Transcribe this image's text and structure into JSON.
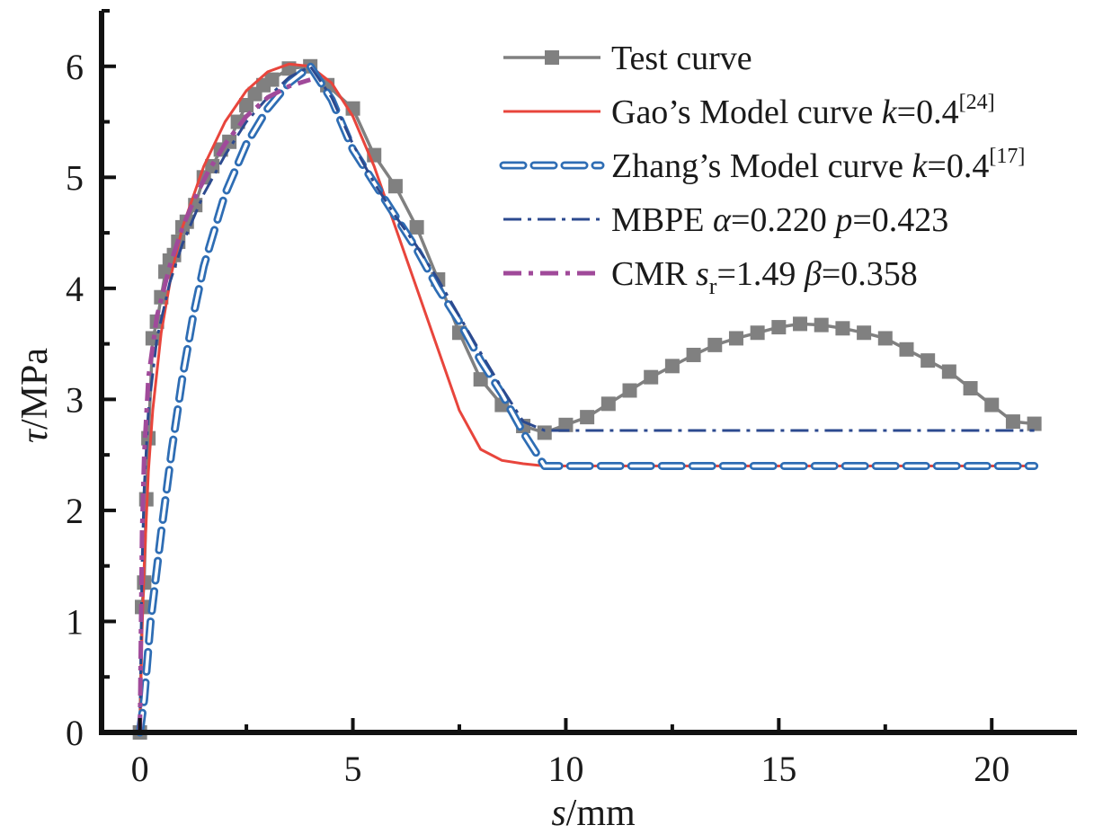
{
  "chart_data": {
    "type": "line",
    "xlabel": {
      "var": "s",
      "unit": "/mm"
    },
    "ylabel": {
      "var": "τ",
      "unit": "/MPa"
    },
    "xlim": [
      -0.9,
      22.0
    ],
    "ylim": [
      0,
      6.5
    ],
    "x_ticks": [
      0,
      5,
      10,
      15,
      20
    ],
    "y_ticks": [
      0,
      1,
      2,
      3,
      4,
      5,
      6
    ],
    "grid": false,
    "legend_position": "top-right",
    "colors": {
      "test": "#808080",
      "gao": "#e8453c",
      "zhang": "#2e6db4",
      "mbpe": "#2c4a8f",
      "cmr": "#a04a9a"
    },
    "series": [
      {
        "name": "Test curve",
        "style": "line-square-markers",
        "color": "#808080",
        "legend": {
          "base": "Test curve"
        },
        "x": [
          0,
          0.05,
          0.1,
          0.15,
          0.2,
          0.3,
          0.4,
          0.5,
          0.6,
          0.7,
          0.8,
          0.9,
          1.0,
          1.1,
          1.3,
          1.5,
          1.7,
          1.9,
          2.1,
          2.3,
          2.5,
          2.7,
          2.9,
          3.1,
          3.5,
          4.0,
          4.4,
          5.0,
          5.5,
          6.0,
          6.5,
          7.0,
          7.5,
          8.0,
          8.5,
          9.0,
          9.5,
          10.0,
          10.5,
          11.0,
          11.5,
          12.0,
          12.5,
          13.0,
          13.5,
          14.0,
          14.5,
          15.0,
          15.5,
          16.0,
          16.5,
          17.0,
          17.5,
          18.0,
          18.5,
          19.0,
          19.5,
          20.0,
          20.5,
          21.0
        ],
        "y": [
          0,
          1.13,
          1.35,
          2.1,
          2.65,
          3.55,
          3.7,
          3.92,
          4.15,
          4.25,
          4.3,
          4.42,
          4.55,
          4.6,
          4.75,
          5.0,
          5.1,
          5.25,
          5.32,
          5.5,
          5.65,
          5.75,
          5.83,
          5.88,
          5.98,
          6.0,
          5.83,
          5.62,
          5.2,
          4.92,
          4.55,
          4.08,
          3.6,
          3.18,
          2.95,
          2.76,
          2.7,
          2.77,
          2.84,
          2.96,
          3.08,
          3.2,
          3.3,
          3.4,
          3.49,
          3.55,
          3.6,
          3.65,
          3.68,
          3.67,
          3.64,
          3.6,
          3.55,
          3.45,
          3.35,
          3.25,
          3.1,
          2.95,
          2.8,
          2.78
        ]
      },
      {
        "name": "Gao's Model curve",
        "style": "solid",
        "color": "#e8453c",
        "legend": {
          "base": "Gao’s Model curve ",
          "var": "k",
          "val": "=0.4",
          "sup": "[24]"
        },
        "x": [
          0,
          0.05,
          0.1,
          0.2,
          0.3,
          0.5,
          0.75,
          1.0,
          1.5,
          2.0,
          2.5,
          3.0,
          3.5,
          4.0,
          4.5,
          5.0,
          5.5,
          6.0,
          6.5,
          7.0,
          7.5,
          8.0,
          8.5,
          9.0,
          9.5,
          10,
          12,
          14,
          16,
          18,
          20,
          21
        ],
        "y": [
          0,
          0.9,
          1.5,
          2.35,
          2.9,
          3.6,
          4.15,
          4.55,
          5.1,
          5.5,
          5.78,
          5.95,
          6.02,
          6.0,
          5.85,
          5.55,
          5.1,
          4.55,
          4.0,
          3.45,
          2.9,
          2.55,
          2.45,
          2.42,
          2.4,
          2.4,
          2.4,
          2.4,
          2.4,
          2.4,
          2.4,
          2.4
        ]
      },
      {
        "name": "Zhang's Model curve",
        "style": "dashed-outline",
        "color": "#2e6db4",
        "legend": {
          "base": "Zhang’s Model curve ",
          "var": "k",
          "val": "=0.4",
          "sup": "[17]"
        },
        "x": [
          0,
          0.1,
          0.25,
          0.5,
          0.75,
          1.0,
          1.25,
          1.5,
          2.0,
          2.5,
          3.0,
          3.5,
          4.0,
          4.5,
          5.0,
          5.5,
          6.0,
          6.5,
          7.0,
          7.5,
          8.0,
          8.5,
          9.0,
          9.5,
          10,
          12,
          14,
          16,
          18,
          20,
          21
        ],
        "y": [
          0,
          0.3,
          1.0,
          1.8,
          2.55,
          3.2,
          3.75,
          4.2,
          4.85,
          5.3,
          5.62,
          5.85,
          6.0,
          5.7,
          5.25,
          4.95,
          4.65,
          4.35,
          4.0,
          3.7,
          3.35,
          3.05,
          2.7,
          2.4,
          2.4,
          2.4,
          2.4,
          2.4,
          2.4,
          2.4,
          2.4
        ]
      },
      {
        "name": "MBPE",
        "style": "dash-dot",
        "color": "#2c4a8f",
        "legend": {
          "base": "MBPE ",
          "var": "α",
          "val": "=0.220 ",
          "var2": "p",
          "val2": "=0.423"
        },
        "x": [
          0,
          0.05,
          0.1,
          0.2,
          0.4,
          0.7,
          1.0,
          1.5,
          2.0,
          2.5,
          3.0,
          3.5,
          4.0,
          4.5,
          5.0,
          5.5,
          6.0,
          6.5,
          7.0,
          7.5,
          8.0,
          8.5,
          9.0,
          9.5,
          10,
          12,
          14,
          16,
          18,
          20,
          21
        ],
        "y": [
          0,
          1.5,
          2.2,
          2.9,
          3.55,
          4.05,
          4.4,
          4.85,
          5.2,
          5.5,
          5.72,
          5.9,
          6.0,
          5.72,
          5.3,
          4.95,
          4.65,
          4.38,
          4.08,
          3.75,
          3.42,
          3.1,
          2.8,
          2.72,
          2.72,
          2.72,
          2.72,
          2.72,
          2.72,
          2.72,
          2.72
        ]
      },
      {
        "name": "CMR",
        "style": "dash-dot-thick",
        "color": "#a04a9a",
        "legend": {
          "base": "CMR ",
          "var": "s",
          "sub": "r",
          "val": "=1.49 ",
          "var2": "β",
          "val2": "=0.358"
        },
        "x": [
          0,
          0.05,
          0.1,
          0.2,
          0.4,
          0.7,
          1.0,
          1.3,
          1.6,
          2.0,
          2.5,
          3.0,
          3.5,
          4.0
        ],
        "y": [
          0,
          1.8,
          2.5,
          3.2,
          3.75,
          4.2,
          4.55,
          4.82,
          5.05,
          5.3,
          5.55,
          5.72,
          5.82,
          5.88
        ]
      }
    ]
  }
}
